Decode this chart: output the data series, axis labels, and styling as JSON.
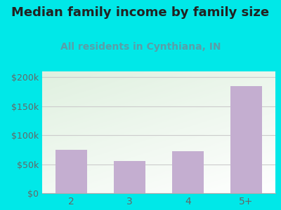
{
  "title": "Median family income by family size",
  "subtitle": "All residents in Cynthiana, IN",
  "categories": [
    "2",
    "3",
    "4",
    "5+"
  ],
  "values": [
    75000,
    55000,
    72000,
    185000
  ],
  "bar_color": "#c4aed0",
  "title_fontsize": 13,
  "title_fontweight": "bold",
  "title_color": "#222222",
  "subtitle_fontsize": 10,
  "subtitle_fontweight": "bold",
  "subtitle_color": "#5a9ea8",
  "tick_color": "#666666",
  "tick_fontsize": 9,
  "xtick_fontsize": 10,
  "ylim": [
    0,
    210000
  ],
  "yticks": [
    0,
    50000,
    100000,
    150000,
    200000
  ],
  "ytick_labels": [
    "$0",
    "$50k",
    "$100k",
    "$150k",
    "$200k"
  ],
  "bg_outer": "#00e8e8",
  "grid_color": "#cccccc",
  "grid_lw": 0.8
}
